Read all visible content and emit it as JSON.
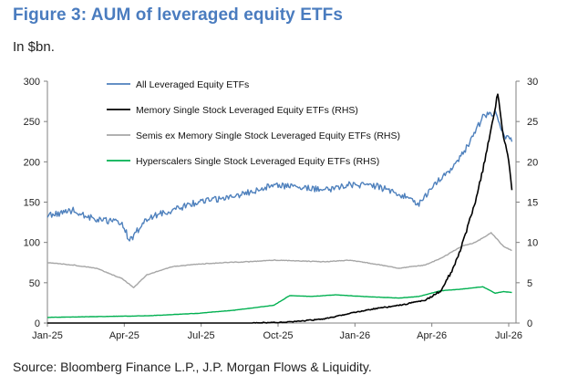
{
  "title": "Figure 3: AUM of leveraged equity ETFs",
  "subtitle": "In $bn.",
  "source": "Source: Bloomberg Finance L.P., J.P. Morgan Flows & Liquidity.",
  "chart_data": {
    "type": "line",
    "x_ticks": [
      "Jan-25",
      "Apr-25",
      "Jul-25",
      "Oct-25",
      "Jan-26",
      "Apr-26",
      "Jul-26"
    ],
    "x_range": [
      "2025-01-01",
      "2026-07-20"
    ],
    "y_left": {
      "min": 0,
      "max": 300,
      "ticks": [
        0,
        50,
        100,
        150,
        200,
        250,
        300
      ]
    },
    "y_right": {
      "min": 0,
      "max": 30,
      "ticks": [
        0,
        5,
        10,
        15,
        20,
        25,
        30
      ]
    },
    "legend_position": "top-center",
    "grid": false,
    "series": [
      {
        "name": "All Leveraged Equity ETFs",
        "axis": "left",
        "color": "#4f81bd",
        "points": [
          [
            "2025-01-01",
            133
          ],
          [
            "2025-02-01",
            140
          ],
          [
            "2025-03-01",
            128
          ],
          [
            "2025-04-01",
            125
          ],
          [
            "2025-04-10",
            102
          ],
          [
            "2025-05-01",
            130
          ],
          [
            "2025-06-01",
            140
          ],
          [
            "2025-07-01",
            150
          ],
          [
            "2025-08-01",
            155
          ],
          [
            "2025-09-01",
            162
          ],
          [
            "2025-10-01",
            172
          ],
          [
            "2025-11-01",
            168
          ],
          [
            "2025-12-01",
            165
          ],
          [
            "2026-01-01",
            172
          ],
          [
            "2026-02-01",
            170
          ],
          [
            "2026-03-01",
            160
          ],
          [
            "2026-03-25",
            148
          ],
          [
            "2026-04-15",
            175
          ],
          [
            "2026-05-01",
            190
          ],
          [
            "2026-05-20",
            215
          ],
          [
            "2026-06-10",
            255
          ],
          [
            "2026-06-25",
            262
          ],
          [
            "2026-07-05",
            235
          ],
          [
            "2026-07-15",
            225
          ]
        ]
      },
      {
        "name": "Memory Single Stock Leveraged Equity ETFs (RHS)",
        "axis": "right",
        "color": "#000000",
        "points": [
          [
            "2025-01-01",
            0
          ],
          [
            "2025-09-01",
            0
          ],
          [
            "2025-10-15",
            0.1
          ],
          [
            "2025-12-01",
            0.5
          ],
          [
            "2026-01-01",
            1.2
          ],
          [
            "2026-02-01",
            1.8
          ],
          [
            "2026-03-01",
            2.2
          ],
          [
            "2026-04-01",
            2.8
          ],
          [
            "2026-04-20",
            4.0
          ],
          [
            "2026-05-01",
            6.0
          ],
          [
            "2026-05-10",
            8.0
          ],
          [
            "2026-05-20",
            11.0
          ],
          [
            "2026-06-01",
            15.0
          ],
          [
            "2026-06-10",
            19.0
          ],
          [
            "2026-06-20",
            24.0
          ],
          [
            "2026-06-28",
            28.5
          ],
          [
            "2026-07-05",
            23.0
          ],
          [
            "2026-07-10",
            21.0
          ],
          [
            "2026-07-15",
            16.5
          ]
        ]
      },
      {
        "name": "Semis ex Memory Single Stock Leveraged Equity ETFs (RHS)",
        "axis": "right",
        "color": "#a6a6a6",
        "points": [
          [
            "2025-01-01",
            7.5
          ],
          [
            "2025-02-01",
            7.2
          ],
          [
            "2025-03-01",
            6.8
          ],
          [
            "2025-04-01",
            5.5
          ],
          [
            "2025-04-15",
            4.4
          ],
          [
            "2025-05-01",
            6.0
          ],
          [
            "2025-06-01",
            7.0
          ],
          [
            "2025-07-01",
            7.3
          ],
          [
            "2025-08-01",
            7.5
          ],
          [
            "2025-09-01",
            7.6
          ],
          [
            "2025-10-01",
            7.8
          ],
          [
            "2025-11-01",
            7.7
          ],
          [
            "2025-12-01",
            7.6
          ],
          [
            "2026-01-01",
            7.8
          ],
          [
            "2026-02-01",
            7.3
          ],
          [
            "2026-03-01",
            6.8
          ],
          [
            "2026-04-01",
            7.2
          ],
          [
            "2026-04-20",
            8.0
          ],
          [
            "2026-05-15",
            9.5
          ],
          [
            "2026-06-01",
            10.0
          ],
          [
            "2026-06-20",
            11.2
          ],
          [
            "2026-07-05",
            9.5
          ],
          [
            "2026-07-15",
            9.0
          ]
        ]
      },
      {
        "name": "Hyperscalers Single Stock Leveraged Equity ETFs (RHS)",
        "axis": "right",
        "color": "#00b050",
        "points": [
          [
            "2025-01-01",
            0.7
          ],
          [
            "2025-03-01",
            0.8
          ],
          [
            "2025-05-01",
            0.9
          ],
          [
            "2025-07-01",
            1.2
          ],
          [
            "2025-08-15",
            1.6
          ],
          [
            "2025-10-01",
            2.2
          ],
          [
            "2025-10-20",
            3.4
          ],
          [
            "2025-11-15",
            3.3
          ],
          [
            "2025-12-15",
            3.5
          ],
          [
            "2026-01-15",
            3.3
          ],
          [
            "2026-03-01",
            3.1
          ],
          [
            "2026-03-25",
            3.3
          ],
          [
            "2026-04-20",
            4.0
          ],
          [
            "2026-05-15",
            4.2
          ],
          [
            "2026-06-10",
            4.5
          ],
          [
            "2026-06-25",
            3.7
          ],
          [
            "2026-07-05",
            3.9
          ],
          [
            "2026-07-15",
            3.8
          ]
        ]
      }
    ]
  }
}
